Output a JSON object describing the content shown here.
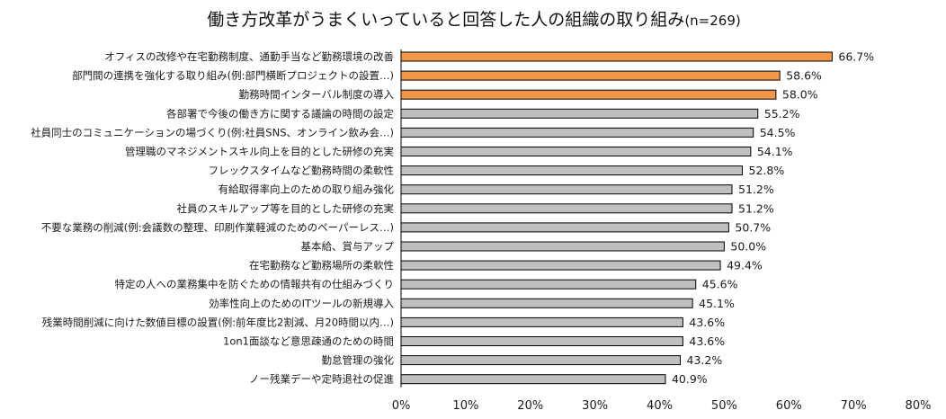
{
  "chart_data": {
    "type": "bar",
    "orientation": "horizontal",
    "title": "働き方改革がうまくいっていると回答した人の組織の取り組み",
    "subtitle": "(n=269)",
    "categories": [
      "オフィスの改修や在宅勤務制度、通勤手当など勤務環境の改善",
      "部門間の連携を強化する取り組み(例:部門横断プロジェクトの設置…)",
      "勤務時間インターバル制度の導入",
      "各部署で今後の働き方に関する議論の時間の設定",
      "社員同士のコミュニケーションの場づくり(例:社員SNS、オンライン飲み会…)",
      "管理職のマネジメントスキル向上を目的とした研修の充実",
      "フレックスタイムなど勤務時間の柔軟性",
      "有給取得率向上のための取り組み強化",
      "社員のスキルアップ等を目的とした研修の充実",
      "不要な業務の削減(例:会議数の整理、印刷作業軽減のためのペーパーレス…)",
      "基本給、賞与アップ",
      "在宅勤務など勤務場所の柔軟性",
      "特定の人への業務集中を防ぐための情報共有の仕組みづくり",
      "効率性向上のためのITツールの新規導入",
      "残業時間削減に向けた数値目標の設置(例:前年度比2割減、月20時間以内…)",
      "1on1面談など意思疎通のための時間",
      "勤怠管理の強化",
      "ノー残業デーや定時退社の促進"
    ],
    "values": [
      66.7,
      58.6,
      58.0,
      55.2,
      54.5,
      54.1,
      52.8,
      51.2,
      51.2,
      50.7,
      50.0,
      49.4,
      45.6,
      45.1,
      43.6,
      43.6,
      43.2,
      40.9
    ],
    "value_labels": [
      "66.7%",
      "58.6%",
      "58.0%",
      "55.2%",
      "54.5%",
      "54.1%",
      "52.8%",
      "51.2%",
      "51.2%",
      "50.7%",
      "50.0%",
      "49.4%",
      "45.6%",
      "45.1%",
      "43.6%",
      "43.6%",
      "43.2%",
      "40.9%"
    ],
    "highlighted": [
      true,
      true,
      true,
      false,
      false,
      false,
      false,
      false,
      false,
      false,
      false,
      false,
      false,
      false,
      false,
      false,
      false,
      false
    ],
    "xlim": [
      0,
      80
    ],
    "xticks": [
      "0%",
      "10%",
      "20%",
      "30%",
      "40%",
      "50%",
      "60%",
      "70%",
      "80%"
    ],
    "grid": false,
    "colors": {
      "highlight": "#F0974A",
      "normal": "#BFBFBF",
      "stroke": "#000000"
    }
  }
}
